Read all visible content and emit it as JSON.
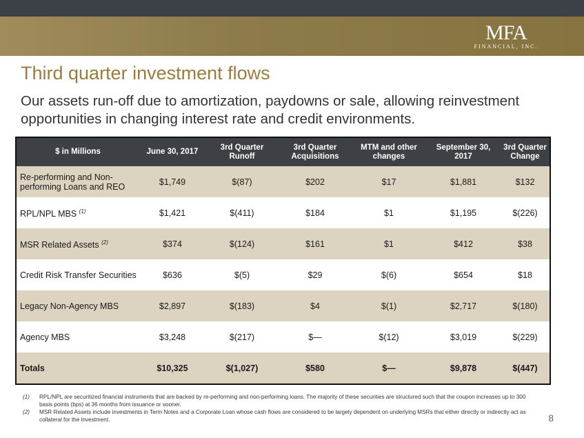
{
  "logo": {
    "mark": "MFA",
    "sub": "FINANCIAL, INC."
  },
  "title": "Third quarter investment flows",
  "subtitle": "Our assets run-off due to amortization, paydowns or sale, allowing reinvestment opportunities in changing interest rate and credit environments.",
  "table": {
    "headers": [
      "$ in Millions",
      "June 30, 2017",
      "3rd Quarter Runoff",
      "3rd Quarter Acquisitions",
      "MTM and other changes",
      "September 30, 2017",
      "3rd Quarter Change"
    ],
    "rows": [
      {
        "label": "Re-performing and Non-performing Loans and REO",
        "sup": "",
        "values": [
          "$1,749",
          "$(87)",
          "$202",
          "$17",
          "$1,881",
          "$132"
        ]
      },
      {
        "label": "RPL/NPL MBS",
        "sup": "(1)",
        "values": [
          "$1,421",
          "$(411)",
          "$184",
          "$1",
          "$1,195",
          "$(226)"
        ]
      },
      {
        "label": "MSR Related Assets",
        "sup": "(2)",
        "values": [
          "$374",
          "$(124)",
          "$161",
          "$1",
          "$412",
          "$38"
        ]
      },
      {
        "label": "Credit Risk Transfer Securities",
        "sup": "",
        "values": [
          "$636",
          "$(5)",
          "$29",
          "$(6)",
          "$654",
          "$18"
        ]
      },
      {
        "label": "Legacy Non-Agency MBS",
        "sup": "",
        "values": [
          "$2,897",
          "$(183)",
          "$4",
          "$(1)",
          "$2,717",
          "$(180)"
        ]
      },
      {
        "label": "Agency MBS",
        "sup": "",
        "values": [
          "$3,248",
          "$(217)",
          "$—",
          "$(12)",
          "$3,019",
          "$(229)"
        ]
      }
    ],
    "total": {
      "label": "Totals",
      "values": [
        "$10,325",
        "$(1,027)",
        "$580",
        "$—",
        "$9,878",
        "$(447)"
      ]
    }
  },
  "footnotes": [
    {
      "num": "(1)",
      "text": "RPL/NPL are securitized financial instruments that are backed by re-performing and non-performing loans. The majority of these securities are structured such that the coupon increases up to 300 basis points (bps) at 36 months from issuance or sooner."
    },
    {
      "num": "(2)",
      "text": "MSR Related Assets include investments in Term Notes and a Corporate Loan whose cash flows are considered to be largely dependent on underlying MSRs that either directly or indirectly act as collateral for the investment."
    }
  ],
  "page_number": "8"
}
